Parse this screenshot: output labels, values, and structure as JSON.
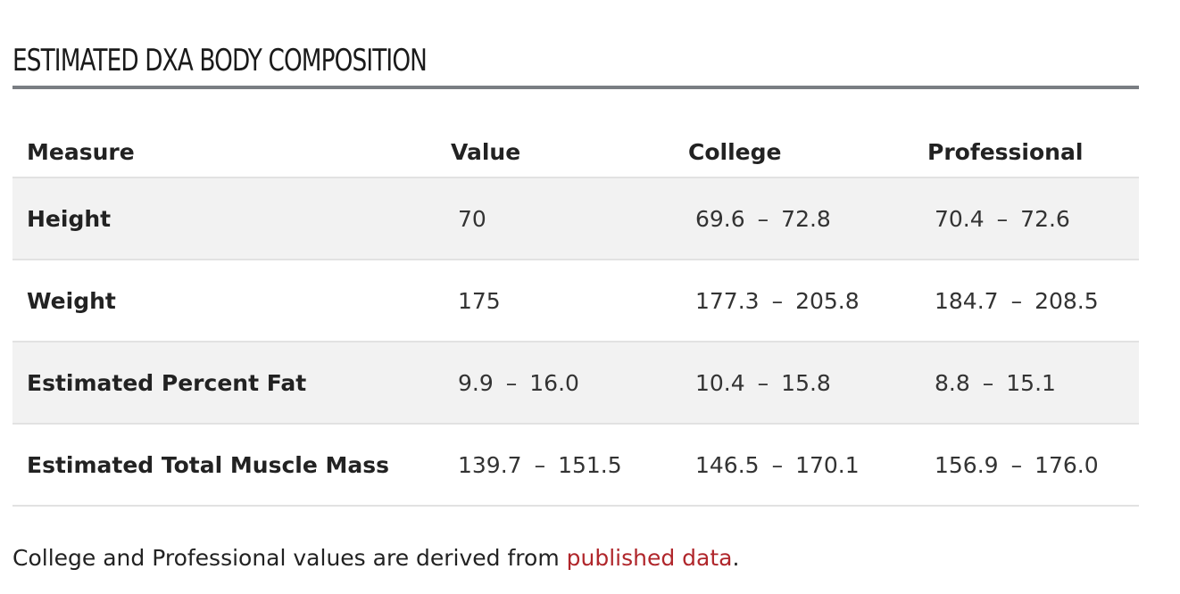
{
  "section": {
    "title": "ESTIMATED DXA BODY COMPOSITION"
  },
  "table": {
    "headers": {
      "measure": "Measure",
      "value": "Value",
      "college": "College",
      "professional": "Professional"
    },
    "rows": [
      {
        "measure": "Height",
        "value": {
          "low": "70",
          "high": null
        },
        "college": {
          "low": "69.6",
          "high": "72.8"
        },
        "professional": {
          "low": "70.4",
          "high": "72.6"
        }
      },
      {
        "measure": "Weight",
        "value": {
          "low": "175",
          "high": null
        },
        "college": {
          "low": "177.3",
          "high": "205.8"
        },
        "professional": {
          "low": "184.7",
          "high": "208.5"
        }
      },
      {
        "measure": "Estimated Percent Fat",
        "value": {
          "low": "9.9",
          "high": "16.0"
        },
        "college": {
          "low": "10.4",
          "high": "15.8"
        },
        "professional": {
          "low": "8.8",
          "high": "15.1"
        }
      },
      {
        "measure": "Estimated Total Muscle Mass",
        "value": {
          "low": "139.7",
          "high": "151.5"
        },
        "college": {
          "low": "146.5",
          "high": "170.1"
        },
        "professional": {
          "low": "156.9",
          "high": "176.0"
        }
      }
    ],
    "range_separator": "–"
  },
  "footnote": {
    "text_before": "College and Professional values are derived from ",
    "link_text": "published data",
    "text_after": "."
  }
}
